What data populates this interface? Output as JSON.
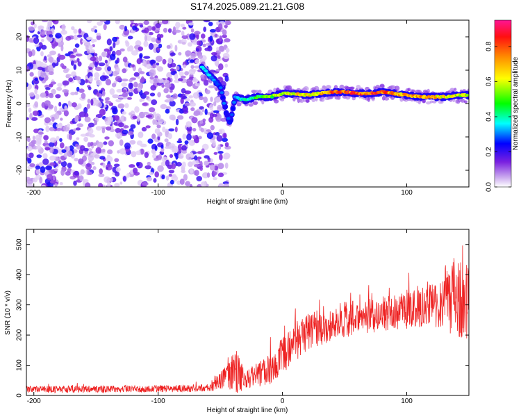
{
  "figure": {
    "title": "S174.2025.089.21.21.G08"
  },
  "chart_data": [
    {
      "type": "heatmap",
      "xlabel": "Height of straight line (km)",
      "ylabel": "Frequency (Hz)",
      "xlim": [
        -206,
        150
      ],
      "ylim": [
        -25,
        25
      ],
      "x_ticks": [
        -200,
        -100,
        0,
        100
      ],
      "y_ticks": [
        -20,
        -10,
        0,
        10,
        20
      ],
      "colorbar": {
        "label": "Normalized spectral amplitude",
        "range": [
          0,
          0.95
        ],
        "ticks": [
          "0.0",
          "0.2",
          "0.4",
          "0.6",
          "0.8"
        ],
        "colors": [
          "#ffffff",
          "#8a2be2",
          "#0000ff",
          "#00ffff",
          "#00ff00",
          "#ffff00",
          "#ff8c00",
          "#ff0000",
          "#ff1493"
        ]
      },
      "noise_region_x": [
        -206,
        -50
      ],
      "trace": [
        {
          "x": -65,
          "y": 11,
          "amp": 0.45
        },
        {
          "x": -60,
          "y": 9,
          "amp": 0.4
        },
        {
          "x": -55,
          "y": 7,
          "amp": 0.35
        },
        {
          "x": -50,
          "y": 5,
          "amp": 0.3
        },
        {
          "x": -45,
          "y": -3,
          "amp": 0.3
        },
        {
          "x": -42,
          "y": -6,
          "amp": 0.3
        },
        {
          "x": -38,
          "y": 2,
          "amp": 0.35
        },
        {
          "x": -30,
          "y": 1,
          "amp": 0.45
        },
        {
          "x": -20,
          "y": 2,
          "amp": 0.5
        },
        {
          "x": -10,
          "y": 2,
          "amp": 0.55
        },
        {
          "x": 0,
          "y": 3,
          "amp": 0.65
        },
        {
          "x": 10,
          "y": 3,
          "amp": 0.7
        },
        {
          "x": 20,
          "y": 2.5,
          "amp": 0.7
        },
        {
          "x": 30,
          "y": 3,
          "amp": 0.75
        },
        {
          "x": 40,
          "y": 3.5,
          "amp": 0.85
        },
        {
          "x": 50,
          "y": 3.5,
          "amp": 0.9
        },
        {
          "x": 60,
          "y": 3,
          "amp": 0.85
        },
        {
          "x": 70,
          "y": 3,
          "amp": 0.85
        },
        {
          "x": 80,
          "y": 3.5,
          "amp": 0.9
        },
        {
          "x": 90,
          "y": 3,
          "amp": 0.8
        },
        {
          "x": 100,
          "y": 2.5,
          "amp": 0.75
        },
        {
          "x": 110,
          "y": 2,
          "amp": 0.8
        },
        {
          "x": 120,
          "y": 2,
          "amp": 0.75
        },
        {
          "x": 130,
          "y": 2,
          "amp": 0.7
        },
        {
          "x": 140,
          "y": 2.5,
          "amp": 0.7
        },
        {
          "x": 150,
          "y": 2.5,
          "amp": 0.65
        }
      ]
    },
    {
      "type": "line",
      "xlabel": "Height of straight line (km)",
      "ylabel": "SNR (10 * v/v)",
      "xlim": [
        -206,
        150
      ],
      "ylim": [
        0,
        550
      ],
      "x_ticks": [
        -200,
        -100,
        0,
        100
      ],
      "y_ticks": [
        0,
        100,
        200,
        300,
        400,
        500
      ],
      "color": "#ee2222",
      "envelope": [
        {
          "x": -206,
          "mean": 20,
          "spread": 12
        },
        {
          "x": -100,
          "mean": 22,
          "spread": 12
        },
        {
          "x": -60,
          "mean": 25,
          "spread": 12
        },
        {
          "x": -45,
          "mean": 60,
          "spread": 40
        },
        {
          "x": -38,
          "mean": 80,
          "spread": 80
        },
        {
          "x": -30,
          "mean": 50,
          "spread": 30
        },
        {
          "x": -20,
          "mean": 70,
          "spread": 40
        },
        {
          "x": -10,
          "mean": 90,
          "spread": 60
        },
        {
          "x": 0,
          "mean": 130,
          "spread": 60
        },
        {
          "x": 10,
          "mean": 180,
          "spread": 70
        },
        {
          "x": 20,
          "mean": 210,
          "spread": 60
        },
        {
          "x": 40,
          "mean": 240,
          "spread": 60
        },
        {
          "x": 60,
          "mean": 260,
          "spread": 60
        },
        {
          "x": 80,
          "mean": 270,
          "spread": 60
        },
        {
          "x": 100,
          "mean": 280,
          "spread": 60
        },
        {
          "x": 120,
          "mean": 300,
          "spread": 70
        },
        {
          "x": 130,
          "mean": 320,
          "spread": 110
        },
        {
          "x": 140,
          "mean": 330,
          "spread": 140
        },
        {
          "x": 150,
          "mean": 320,
          "spread": 140
        }
      ]
    }
  ]
}
